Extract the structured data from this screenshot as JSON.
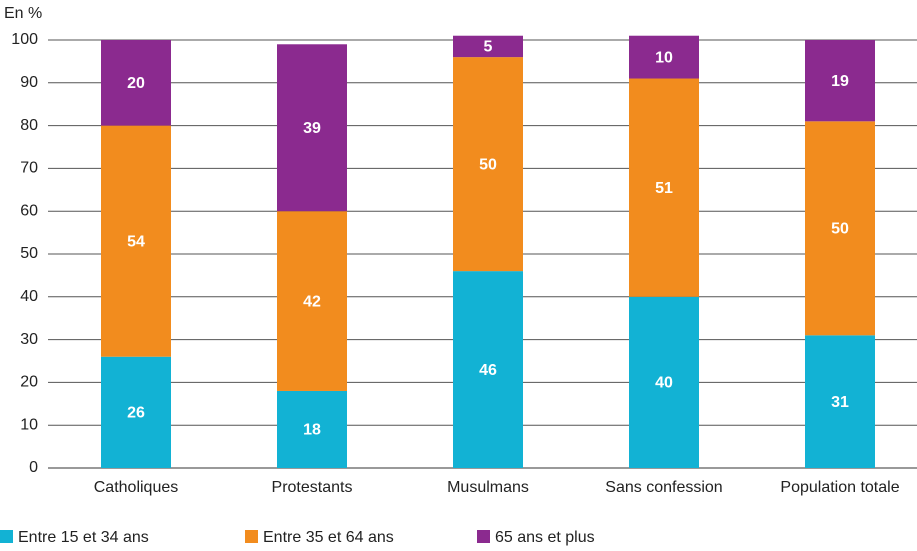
{
  "chart_data": {
    "type": "stacked_bar",
    "y_axis_label": "En %",
    "categories": [
      "Catholiques",
      "Protestants",
      "Musulmans",
      "Sans confession",
      "Population totale"
    ],
    "series": [
      {
        "name": "Entre 15 et 34 ans",
        "color": "#12b2d4",
        "values": [
          26,
          18,
          46,
          40,
          31
        ]
      },
      {
        "name": "Entre 35 et 64 ans",
        "color": "#f28c1e",
        "values": [
          54,
          42,
          50,
          51,
          50
        ]
      },
      {
        "name": "65 ans et plus",
        "color": "#8b2a8f",
        "values": [
          20,
          39,
          5,
          10,
          19
        ]
      }
    ],
    "ylim": [
      0,
      100
    ],
    "yticks": [
      0,
      10,
      20,
      30,
      40,
      50,
      60,
      70,
      80,
      90,
      100
    ],
    "grid": true,
    "legend": "bottom"
  }
}
